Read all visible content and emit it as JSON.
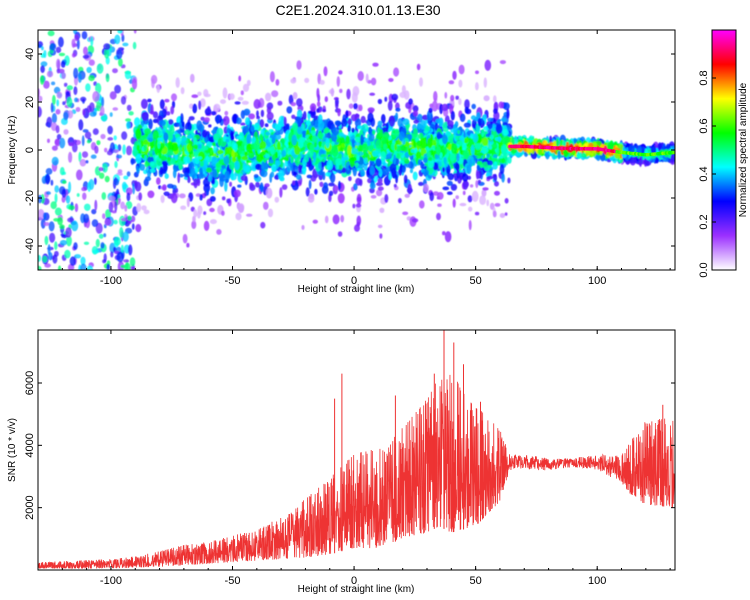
{
  "title": "C2E1.2024.310.01.13.E30",
  "chart_data": [
    {
      "type": "heatmap",
      "title": "C2E1.2024.310.01.13.E30",
      "xlabel": "Height of straight line (km)",
      "ylabel": "Frequency (Hz)",
      "xlim": [
        -130,
        132
      ],
      "ylim": [
        -50,
        50
      ],
      "x_ticks": [
        -100,
        -50,
        0,
        50,
        100
      ],
      "y_ticks": [
        -40,
        -20,
        0,
        20,
        40
      ],
      "grid": false,
      "signal_trace": {
        "x": [
          -90,
          -80,
          -70,
          -60,
          -50,
          -40,
          -30,
          -20,
          -10,
          0,
          10,
          20,
          30,
          40,
          50,
          60,
          64,
          70,
          80,
          90,
          100,
          110,
          120,
          132
        ],
        "y": [
          2,
          2,
          0,
          -3,
          -2,
          1,
          0,
          3,
          1,
          -1,
          0,
          2,
          1,
          0,
          2,
          1,
          1.5,
          1.5,
          1,
          0.5,
          0.5,
          -1,
          -2,
          -1
        ]
      },
      "colorbar": {
        "label": "Normalized spectral amplitude",
        "range": [
          0,
          1
        ],
        "ticks": [
          "0.0",
          "0.2",
          "0.4",
          "0.6",
          "0.8"
        ],
        "colors": [
          "#ffffff",
          "#9b30ff",
          "#0000ff",
          "#00ffff",
          "#00ff00",
          "#ffff00",
          "#ff0000",
          "#ff00ff"
        ]
      }
    },
    {
      "type": "line",
      "xlabel": "Height of straight line (km)",
      "ylabel": "SNR (10 * v/v)",
      "xlim": [
        -130,
        132
      ],
      "ylim": [
        0,
        7700
      ],
      "x_ticks": [
        -100,
        -50,
        0,
        50,
        100
      ],
      "y_ticks": [
        2000,
        4000,
        6000
      ],
      "grid": false,
      "color": "#ee3333",
      "envelope": {
        "x": [
          -130,
          -100,
          -90,
          -80,
          -70,
          -60,
          -50,
          -40,
          -30,
          -20,
          -10,
          0,
          10,
          20,
          30,
          35,
          40,
          50,
          60,
          64,
          70,
          80,
          90,
          100,
          110,
          115,
          120,
          132
        ],
        "low": [
          50,
          50,
          80,
          100,
          150,
          200,
          250,
          300,
          350,
          400,
          500,
          700,
          700,
          1000,
          1200,
          1400,
          1200,
          1400,
          2200,
          3200,
          3200,
          3200,
          3300,
          3200,
          2800,
          2300,
          2100,
          2000
        ],
        "high": [
          250,
          350,
          450,
          600,
          800,
          900,
          1100,
          1300,
          1700,
          2300,
          3000,
          3700,
          4000,
          4600,
          5500,
          6200,
          6300,
          5300,
          4500,
          3700,
          3700,
          3600,
          3600,
          3700,
          3700,
          4300,
          4800,
          4900
        ]
      },
      "spikes": [
        {
          "x": -8,
          "y": 5500
        },
        {
          "x": -5,
          "y": 6300
        },
        {
          "x": 17,
          "y": 5600
        },
        {
          "x": 33,
          "y": 6300
        },
        {
          "x": 37,
          "y": 7700
        },
        {
          "x": 41,
          "y": 7300
        },
        {
          "x": 45,
          "y": 6600
        },
        {
          "x": 52,
          "y": 5400
        },
        {
          "x": 127,
          "y": 5300
        }
      ]
    }
  ]
}
